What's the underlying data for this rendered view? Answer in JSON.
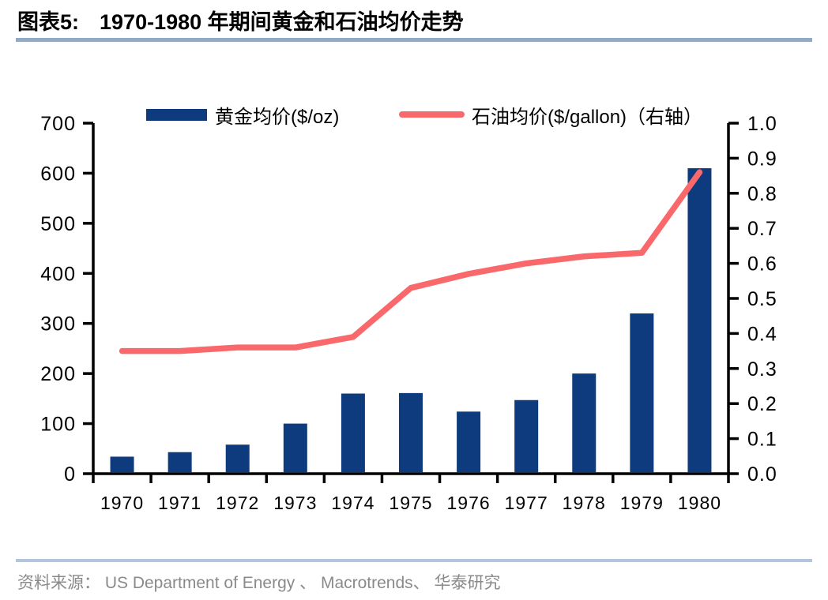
{
  "header": {
    "chart_label": "图表5:",
    "title": "1970-1980 年期间黄金和石油均价走势"
  },
  "legend": {
    "gold": {
      "label": "黄金均价($/oz)"
    },
    "oil": {
      "label": "石油均价($/gallon)（右轴）"
    }
  },
  "footer": {
    "source": "资料来源： US Department of Energy 、 Macrotrends、 华泰研究"
  },
  "colors": {
    "gold_bar": "#0d3b7d",
    "oil_line": "#f9696c",
    "axis": "#000000",
    "title_rule": "#93a9c4",
    "footer_rule": "#b3c5da",
    "source_text": "#8a8a8a"
  },
  "chart_data": {
    "type": "bar",
    "combo": "bar+line",
    "title": "1970-1980 年期间黄金和石油均价走势",
    "categories": [
      "1970",
      "1971",
      "1972",
      "1973",
      "1974",
      "1975",
      "1976",
      "1977",
      "1978",
      "1979",
      "1980"
    ],
    "series": [
      {
        "name": "黄金均价($/oz)",
        "type": "bar",
        "axis": "left",
        "values": [
          34,
          43,
          58,
          100,
          160,
          161,
          124,
          147,
          200,
          320,
          610
        ]
      },
      {
        "name": "石油均价($/gallon)（右轴）",
        "type": "line",
        "axis": "right",
        "values": [
          0.35,
          0.35,
          0.36,
          0.36,
          0.39,
          0.53,
          0.57,
          0.6,
          0.62,
          0.63,
          0.86
        ]
      }
    ],
    "left_axis": {
      "min": 0,
      "max": 700,
      "step": 100,
      "ticks": [
        "0",
        "100",
        "200",
        "300",
        "400",
        "500",
        "600",
        "700"
      ]
    },
    "right_axis": {
      "min": 0,
      "max": 1.0,
      "step": 0.1,
      "ticks": [
        "0.0",
        "0.1",
        "0.2",
        "0.3",
        "0.4",
        "0.5",
        "0.6",
        "0.7",
        "0.8",
        "0.9",
        "1.0"
      ]
    },
    "grid": false,
    "legend_position": "top"
  }
}
